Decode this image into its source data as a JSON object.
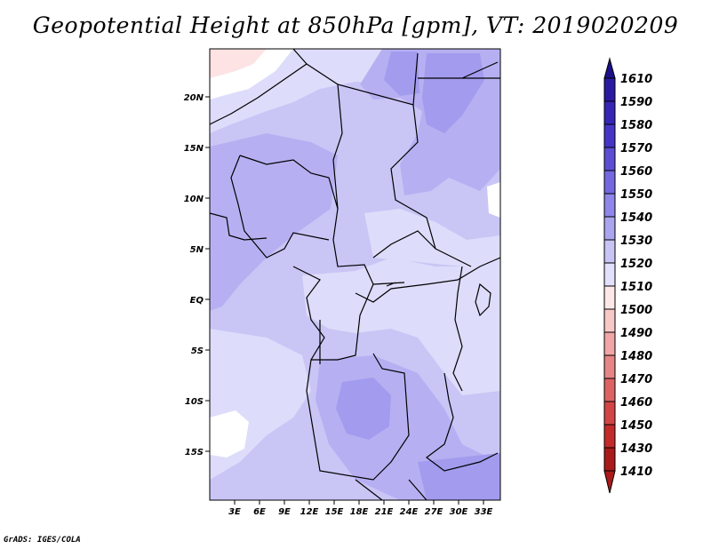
{
  "title": "Geopotential Height at 850hPa [gpm], VT: 2019020209",
  "credit": "GrADS: IGES/COLA",
  "map": {
    "lon_labels": [
      "3E",
      "6E",
      "9E",
      "12E",
      "15E",
      "18E",
      "21E",
      "24E",
      "27E",
      "30E",
      "33E"
    ],
    "lat_labels": [
      "20N",
      "15N",
      "10N",
      "5N",
      "EQ",
      "5S",
      "10S",
      "15S"
    ],
    "lon_range": [
      0,
      35
    ],
    "lat_range": [
      -20,
      24
    ]
  },
  "colorbar": {
    "levels": [
      "1610",
      "1590",
      "1580",
      "1570",
      "1560",
      "1550",
      "1540",
      "1530",
      "1520",
      "1510",
      "1500",
      "1490",
      "1480",
      "1470",
      "1460",
      "1450",
      "1430",
      "1410"
    ],
    "colors": [
      "#1c0f8a",
      "#2a1aa2",
      "#3725b6",
      "#4535c6",
      "#5c4ed4",
      "#7468e0",
      "#8f86ea",
      "#aba5f0",
      "#c8c4f5",
      "#e2e0fa",
      "#fde8e8",
      "#f8c8c8",
      "#f0a6a6",
      "#e68585",
      "#dd6363",
      "#d34545",
      "#c32a2a",
      "#aa1a1a"
    ]
  },
  "field_colors": {
    "c1510": "#fde3e3",
    "c1520": "#dddcfa",
    "c1530": "#c9c6f6",
    "c1540": "#b6b0f2",
    "c1550": "#a29bee",
    "white": "#ffffff"
  }
}
